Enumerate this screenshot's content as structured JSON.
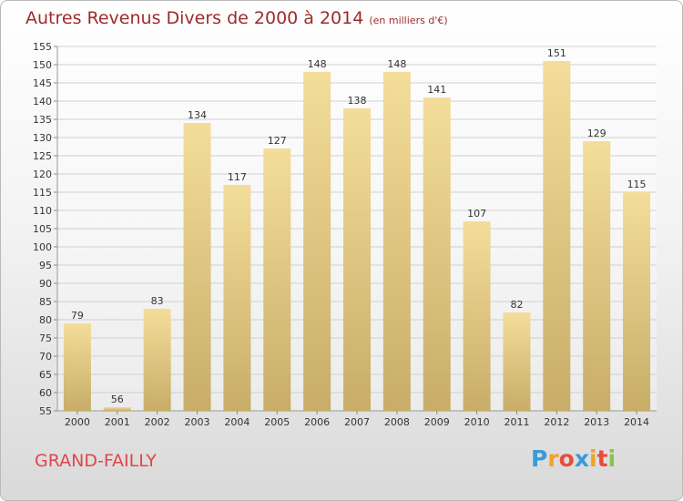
{
  "title": {
    "main": "Autres Revenus Divers de 2000 à 2014",
    "unit": "(en milliers d'€)"
  },
  "place": "GRAND-FAILLY",
  "logo": {
    "letters": [
      "P",
      "r",
      "o",
      "x",
      "i",
      "t",
      "i"
    ],
    "colors": [
      "#3a9ad9",
      "#f2a12a",
      "#e84c3d",
      "#3a9ad9",
      "#f2a12a",
      "#e84c3d",
      "#8bc34a"
    ]
  },
  "colors": {
    "title": "#9e2a2a",
    "place": "#e0464b",
    "bar_top": "#f4dd9a",
    "bar_bottom": "#c7ad68"
  },
  "chart_data": {
    "type": "bar",
    "categories": [
      "2000",
      "2001",
      "2002",
      "2003",
      "2004",
      "2005",
      "2006",
      "2007",
      "2008",
      "2009",
      "2010",
      "2011",
      "2012",
      "2013",
      "2014"
    ],
    "values": [
      79,
      56,
      83,
      134,
      117,
      127,
      148,
      138,
      148,
      141,
      107,
      82,
      151,
      129,
      115
    ],
    "ylim": [
      55,
      155
    ],
    "yticks": [
      55,
      60,
      65,
      70,
      75,
      80,
      85,
      90,
      95,
      100,
      105,
      110,
      115,
      120,
      125,
      130,
      135,
      140,
      145,
      150,
      155
    ],
    "grid": true,
    "title": "Autres Revenus Divers de 2000 à 2014",
    "xlabel": "",
    "ylabel": ""
  }
}
